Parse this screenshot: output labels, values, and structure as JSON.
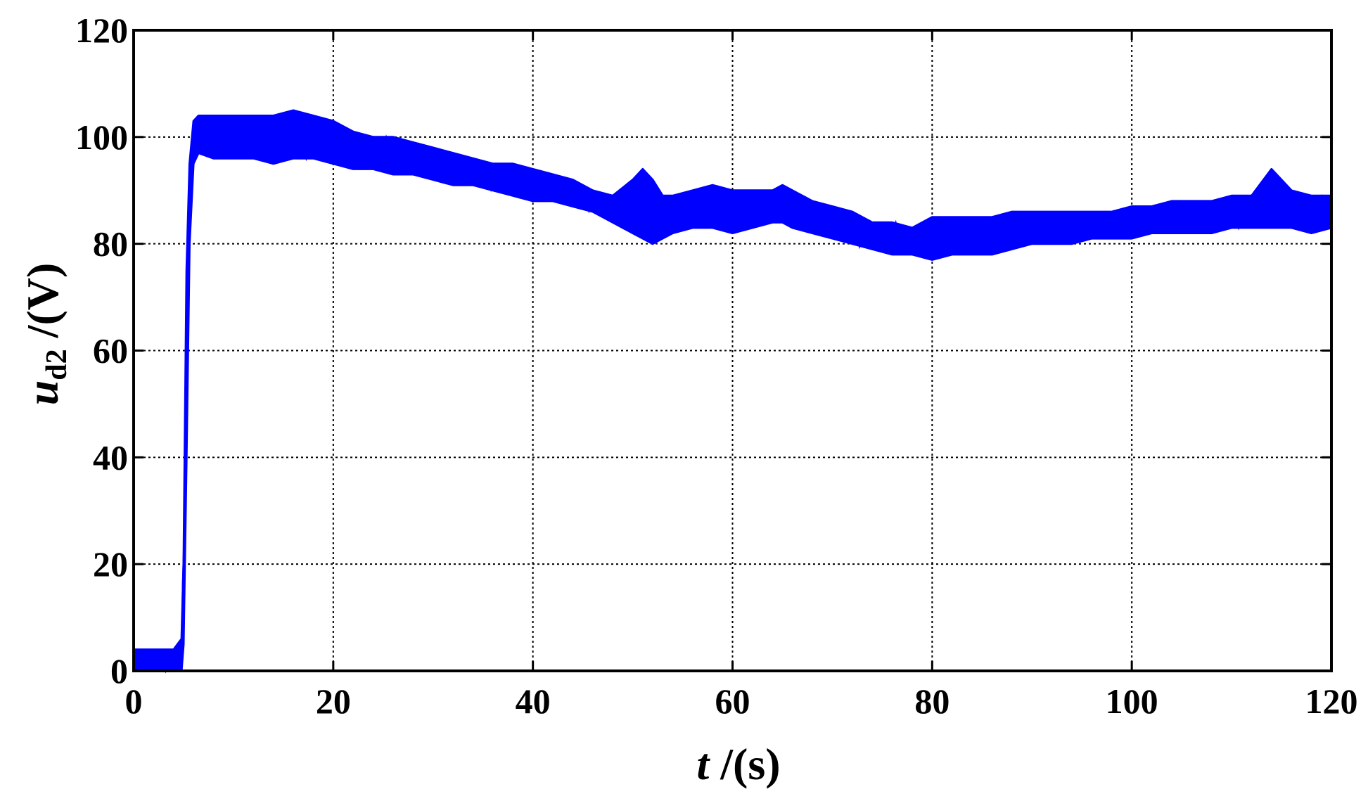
{
  "chart_data": {
    "type": "line",
    "title": "",
    "xlabel": {
      "var": "t",
      "unit": " /(s)"
    },
    "ylabel": {
      "var": "u",
      "sub": "d2",
      "unit": " /(V)"
    },
    "xlim": [
      0,
      120
    ],
    "ylim": [
      0,
      120
    ],
    "x_ticks": [
      0,
      20,
      40,
      60,
      80,
      100,
      120
    ],
    "y_ticks": [
      0,
      20,
      40,
      60,
      80,
      100,
      120
    ],
    "x_tick_labels": [
      "0",
      "20",
      "40",
      "60",
      "80",
      "100",
      "120"
    ],
    "y_tick_labels": [
      "0",
      "20",
      "40",
      "60",
      "80",
      "100",
      "120"
    ],
    "grid": true,
    "line_color": "#0000ff",
    "series": [
      {
        "x": [
          0,
          1,
          2,
          3,
          4,
          4.8,
          5.0,
          5.3,
          5.6,
          6.0,
          6.5,
          8,
          10,
          12,
          14,
          16,
          18,
          20,
          22,
          24,
          26,
          28,
          30,
          32,
          34,
          36,
          38,
          40,
          42,
          44,
          46,
          48,
          50,
          51,
          52,
          53,
          54,
          56,
          58,
          60,
          62,
          64,
          65,
          66,
          68,
          70,
          72,
          74,
          76,
          78,
          80,
          82,
          84,
          86,
          88,
          90,
          92,
          94,
          96,
          98,
          100,
          102,
          104,
          106,
          108,
          110,
          112,
          114,
          116,
          118,
          120
        ],
        "y_low": [
          0,
          0,
          0,
          0,
          0,
          0,
          5,
          40,
          80,
          95,
          97,
          96,
          96,
          96,
          95,
          96,
          96,
          95,
          94,
          94,
          93,
          93,
          92,
          91,
          91,
          90,
          89,
          88,
          88,
          87,
          86,
          84,
          82,
          81,
          80,
          81,
          82,
          83,
          83,
          82,
          83,
          84,
          84,
          83,
          82,
          81,
          80,
          79,
          78,
          78,
          77,
          78,
          78,
          78,
          79,
          80,
          80,
          80,
          81,
          81,
          81,
          82,
          82,
          82,
          82,
          83,
          83,
          83,
          83,
          82,
          83
        ],
        "y_high": [
          4,
          4,
          4,
          4,
          4,
          6,
          20,
          75,
          95,
          103,
          104,
          104,
          104,
          104,
          104,
          105,
          104,
          103,
          101,
          100,
          100,
          99,
          98,
          97,
          96,
          95,
          95,
          94,
          93,
          92,
          90,
          89,
          92,
          94,
          92,
          89,
          89,
          90,
          91,
          90,
          90,
          90,
          91,
          90,
          88,
          87,
          86,
          84,
          84,
          83,
          85,
          85,
          85,
          85,
          86,
          86,
          86,
          86,
          86,
          86,
          87,
          87,
          88,
          88,
          88,
          89,
          89,
          94,
          90,
          89,
          89
        ]
      }
    ]
  }
}
